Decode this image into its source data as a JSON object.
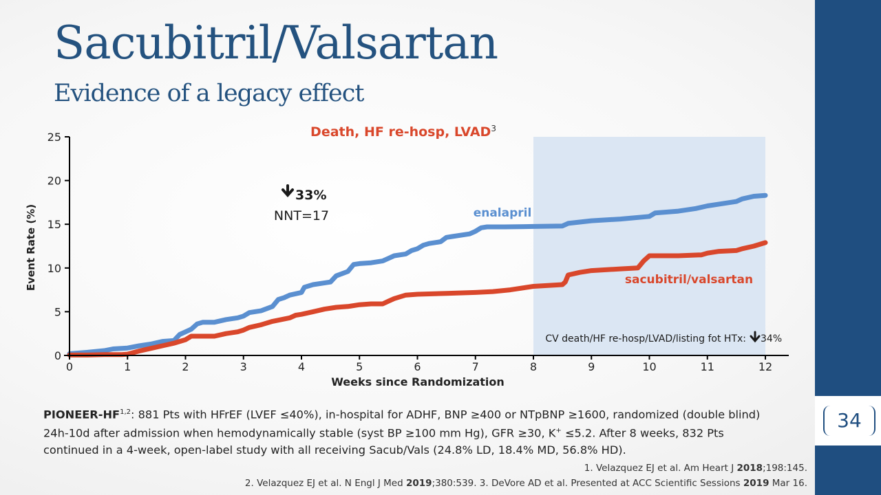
{
  "title": "Sacubitril/Valsartan",
  "subtitle": "Evidence of a legacy effect",
  "page_number": "34",
  "chart_data": {
    "type": "line",
    "title": "Death, HF re-hosp, LVAD",
    "title_superscript": "3",
    "xlabel": "Weeks since Randomization",
    "ylabel": "Event Rate (%)",
    "xlim": [
      0,
      12
    ],
    "ylim": [
      0,
      25
    ],
    "x_ticks": [
      "0",
      "1",
      "2",
      "3",
      "4",
      "5",
      "6",
      "7",
      "8",
      "9",
      "10",
      "11",
      "12"
    ],
    "y_ticks": [
      "0",
      "5",
      "10",
      "15",
      "20",
      "25"
    ],
    "shaded_region": [
      8,
      12
    ],
    "colors": {
      "enalapril": "#5a8fd0",
      "sacubitril": "#d9472b",
      "shade": "#dbe6f3",
      "title": "#d9472b"
    },
    "series": [
      {
        "name": "enalapril",
        "x": [
          0,
          0.3,
          0.6,
          0.75,
          1.0,
          1.2,
          1.4,
          1.6,
          1.8,
          1.9,
          2.0,
          2.1,
          2.2,
          2.3,
          2.5,
          2.7,
          2.9,
          3.0,
          3.1,
          3.3,
          3.5,
          3.6,
          3.7,
          3.8,
          4.0,
          4.05,
          4.2,
          4.5,
          4.6,
          4.8,
          4.9,
          5.0,
          5.2,
          5.4,
          5.5,
          5.6,
          5.8,
          5.9,
          6.0,
          6.1,
          6.2,
          6.4,
          6.5,
          6.6,
          6.9,
          7.0,
          7.1,
          7.2,
          7.5,
          8.0,
          8.5,
          8.6,
          9.0,
          9.5,
          10.0,
          10.1,
          10.5,
          10.8,
          11.0,
          11.2,
          11.5,
          11.6,
          11.8,
          12.0
        ],
        "y": [
          0.2,
          0.35,
          0.55,
          0.75,
          0.85,
          1.1,
          1.3,
          1.6,
          1.7,
          2.4,
          2.7,
          3.0,
          3.6,
          3.8,
          3.8,
          4.1,
          4.3,
          4.5,
          4.9,
          5.1,
          5.6,
          6.4,
          6.6,
          6.9,
          7.2,
          7.8,
          8.1,
          8.4,
          9.1,
          9.6,
          10.4,
          10.5,
          10.6,
          10.8,
          11.1,
          11.4,
          11.6,
          12.0,
          12.2,
          12.6,
          12.8,
          13.0,
          13.5,
          13.6,
          13.9,
          14.2,
          14.6,
          14.7,
          14.7,
          14.75,
          14.8,
          15.1,
          15.4,
          15.6,
          15.9,
          16.3,
          16.5,
          16.8,
          17.1,
          17.3,
          17.6,
          17.9,
          18.2,
          18.3
        ]
      },
      {
        "name": "sacubitril/valsartan",
        "x": [
          0,
          0.3,
          0.6,
          0.9,
          1.0,
          1.2,
          1.4,
          1.6,
          1.8,
          2.0,
          2.1,
          2.3,
          2.5,
          2.7,
          2.9,
          3.0,
          3.1,
          3.3,
          3.5,
          3.8,
          3.9,
          4.0,
          4.2,
          4.4,
          4.6,
          4.8,
          5.0,
          5.2,
          5.4,
          5.5,
          5.6,
          5.8,
          6.0,
          6.5,
          7.0,
          7.3,
          7.6,
          8.0,
          8.5,
          8.55,
          8.6,
          8.8,
          9.0,
          9.5,
          9.8,
          9.9,
          10.0,
          10.5,
          10.9,
          11.0,
          11.2,
          11.5,
          11.6,
          11.8,
          12.0
        ],
        "y": [
          0.05,
          0.05,
          0.1,
          0.1,
          0.15,
          0.5,
          0.8,
          1.1,
          1.4,
          1.8,
          2.2,
          2.2,
          2.2,
          2.5,
          2.7,
          2.9,
          3.2,
          3.5,
          3.9,
          4.3,
          4.6,
          4.7,
          5.0,
          5.3,
          5.5,
          5.6,
          5.8,
          5.9,
          5.9,
          6.2,
          6.5,
          6.9,
          7.0,
          7.1,
          7.2,
          7.3,
          7.5,
          7.9,
          8.1,
          8.4,
          9.2,
          9.5,
          9.7,
          9.9,
          10.0,
          10.8,
          11.4,
          11.4,
          11.5,
          11.7,
          11.9,
          12.0,
          12.2,
          12.5,
          12.9
        ]
      }
    ],
    "annotations": {
      "reduction": "33%",
      "nnt": "NNT=17",
      "enalapril_label": "enalapril",
      "sacubitril_label": "sacubitril/valsartan",
      "cv_note": "CV death/HF re-hosp/LVAD/listing fot HTx:",
      "cv_reduction": "34%"
    }
  },
  "description": {
    "lead": "PIONEER-HF",
    "lead_sup": "1,2",
    "line1": ": 881 Pts with HFrEF (LVEF ≤40%), in-hospital for ADHF, BNP ≥400 or NTpBNP ≥1600, randomized (double blind)",
    "line2a": "24h-10d after admission when hemodynamically stable (syst BP ≥100 mm Hg), GFR ≥30, K",
    "line2_sup": "+",
    "line2b": " ≤5.2. After 8 weeks, 832 Pts",
    "line3": "continued in a 4-week, open-label study with all receiving Sacub/Vals (24.8% LD, 18.4% MD, 56.8% HD)."
  },
  "references": {
    "ref1_a": "1. Velazquez EJ et al. Am Heart J ",
    "ref1_year": "2018",
    "ref1_b": ";198:145.",
    "ref2_a": "2. Velazquez EJ et al. N Engl J Med ",
    "ref2_year": "2019",
    "ref2_b": ";380:539. 3. DeVore AD et al. Presented at ACC Scientific Sessions ",
    "ref2_year2": "2019",
    "ref2_c": " Mar 16."
  }
}
